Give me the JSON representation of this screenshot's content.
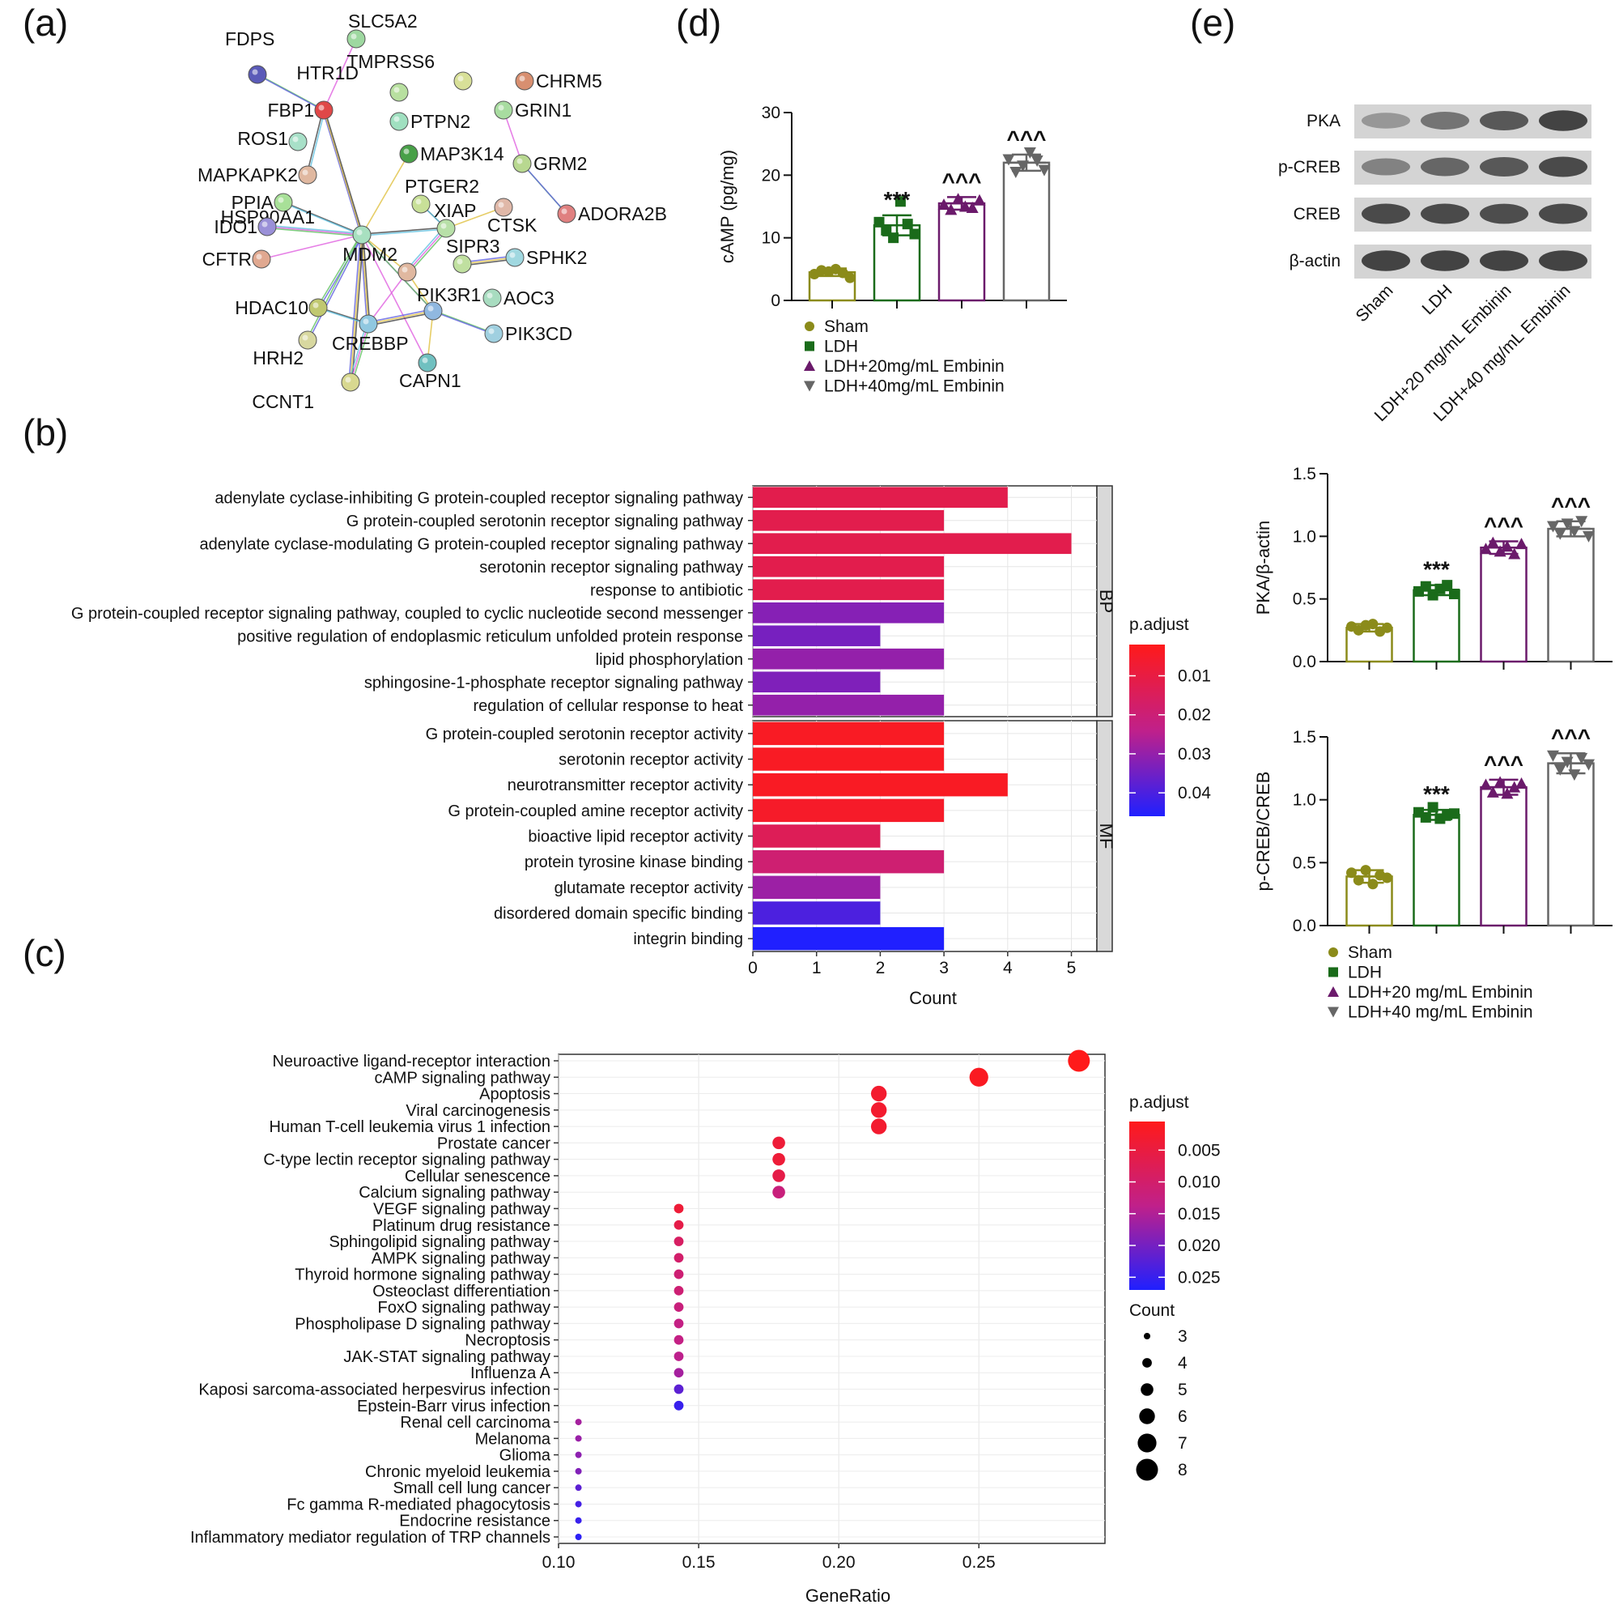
{
  "panels": {
    "a": "(a)",
    "b": "(b)",
    "c": "(c)",
    "d": "(d)",
    "e": "(e)"
  },
  "network": {
    "nodes": [
      {
        "id": "SLC5A2",
        "color": "#9ed8a0"
      },
      {
        "id": "FDPS",
        "color": "#5a5ab8"
      },
      {
        "id": "FBP1",
        "color": "#e04848"
      },
      {
        "id": "HTR1D",
        "color": "#b8e0a0"
      },
      {
        "id": "TMPRSS6",
        "color": "#d8e098"
      },
      {
        "id": "CHRM5",
        "color": "#d88f70"
      },
      {
        "id": "ROS1",
        "color": "#a8e0c8"
      },
      {
        "id": "PTPN2",
        "color": "#a0e0c0"
      },
      {
        "id": "GRIN1",
        "color": "#a8dca0"
      },
      {
        "id": "MAP3K14",
        "color": "#48a048"
      },
      {
        "id": "MAPKAPK2",
        "color": "#e0b8a0"
      },
      {
        "id": "GRM2",
        "color": "#b8d890"
      },
      {
        "id": "PTGER2",
        "color": "#c8e098"
      },
      {
        "id": "PPIA",
        "color": "#a8e098"
      },
      {
        "id": "HSP90AA1",
        "color": "#a8e0c0"
      },
      {
        "id": "XIAP",
        "color": "#b8e0a8"
      },
      {
        "id": "CTSK",
        "color": "#e0b8a8"
      },
      {
        "id": "ADORA2B",
        "color": "#e08080"
      },
      {
        "id": "IDO1",
        "color": "#9a90d8"
      },
      {
        "id": "CFTR",
        "color": "#e0a890"
      },
      {
        "id": "MDM2",
        "color": "#e0b8a0"
      },
      {
        "id": "SIPR3",
        "color": "#c0e0a0"
      },
      {
        "id": "SPHK2",
        "color": "#a0d8e0"
      },
      {
        "id": "PIK3R1",
        "color": "#90b8e0"
      },
      {
        "id": "AOC3",
        "color": "#a8dcc0"
      },
      {
        "id": "HDAC10",
        "color": "#c0c870"
      },
      {
        "id": "PIK3CD",
        "color": "#a0d0e0"
      },
      {
        "id": "CREBBP",
        "color": "#90c8e0"
      },
      {
        "id": "HRH2",
        "color": "#d8d8a0"
      },
      {
        "id": "CAPN1",
        "color": "#70c0c0"
      },
      {
        "id": "CCNT1",
        "color": "#d8d890"
      }
    ],
    "edges": [
      [
        "SLC5A2",
        "FBP1"
      ],
      [
        "FDPS",
        "FBP1"
      ],
      [
        "FBP1",
        "HSP90AA1"
      ],
      [
        "HSP90AA1",
        "MAP3K14"
      ],
      [
        "HSP90AA1",
        "PPIA"
      ],
      [
        "HSP90AA1",
        "IDO1"
      ],
      [
        "HSP90AA1",
        "CFTR"
      ],
      [
        "HSP90AA1",
        "HDAC10"
      ],
      [
        "HSP90AA1",
        "CREBBP"
      ],
      [
        "HSP90AA1",
        "MDM2"
      ],
      [
        "HSP90AA1",
        "XIAP"
      ],
      [
        "HSP90AA1",
        "PIK3R1"
      ],
      [
        "HSP90AA1",
        "CAPN1"
      ],
      [
        "HSP90AA1",
        "HRH2"
      ],
      [
        "HSP90AA1",
        "CCNT1"
      ],
      [
        "XIAP",
        "CTSK"
      ],
      [
        "XIAP",
        "PTGER2"
      ],
      [
        "XIAP",
        "MDM2"
      ],
      [
        "MDM2",
        "CREBBP"
      ],
      [
        "PIK3R1",
        "PIK3CD"
      ],
      [
        "PIK3R1",
        "CREBBP"
      ],
      [
        "PIK3R1",
        "CAPN1"
      ],
      [
        "CREBBP",
        "HDAC10"
      ],
      [
        "CREBBP",
        "CCNT1"
      ],
      [
        "GRIN1",
        "GRM2"
      ],
      [
        "GRM2",
        "ADORA2B"
      ],
      [
        "SIPR3",
        "SPHK2"
      ],
      [
        "MDM2",
        "PIK3R1"
      ],
      [
        "FBP1",
        "MAPKAPK2"
      ]
    ]
  },
  "chart_data": [
    {
      "panel": "d",
      "type": "bar",
      "categories": [
        "Sham",
        "LDH",
        "LDH+20mg/mL Embinin",
        "LDH+40mg/mL Embinin"
      ],
      "values": [
        4.5,
        12.0,
        15.5,
        22.0
      ],
      "errors": [
        0.6,
        1.6,
        1.0,
        1.3
      ],
      "points": [
        [
          4.2,
          4.8,
          4.6,
          5.0,
          4.4,
          3.6
        ],
        [
          12.5,
          11.2,
          10.0,
          15.8,
          12.2,
          10.6
        ],
        [
          15.3,
          14.5,
          16.2,
          15.0,
          14.8,
          16.0
        ],
        [
          22.5,
          20.5,
          21.5,
          23.6,
          22.3,
          20.8
        ]
      ],
      "colors": [
        "#8b8b1a",
        "#1a6b1a",
        "#6b1a6b",
        "#666666"
      ],
      "markers": [
        "circle",
        "square",
        "triangle-up",
        "triangle-down"
      ],
      "annotations": [
        "",
        "***",
        "^^^",
        "^^^"
      ],
      "ylabel": "cAMP (pg/mg)",
      "ylim": [
        0,
        30
      ],
      "yticks": [
        0,
        10,
        20,
        30
      ],
      "legend": [
        "Sham",
        "LDH",
        "LDH+20mg/mL Embinin",
        "LDH+40mg/mL Embinin"
      ]
    },
    {
      "panel": "e-PKA",
      "type": "bar",
      "categories": [
        "Sham",
        "LDH",
        "LDH+20 mg/mL Embinin",
        "LDH+40 mg/mL Embinin"
      ],
      "values": [
        0.27,
        0.57,
        0.91,
        1.06
      ],
      "errors": [
        0.03,
        0.04,
        0.05,
        0.06
      ],
      "points": [
        [
          0.28,
          0.25,
          0.29,
          0.3,
          0.24,
          0.27
        ],
        [
          0.56,
          0.6,
          0.53,
          0.58,
          0.61,
          0.54
        ],
        [
          0.9,
          0.95,
          0.88,
          0.92,
          0.86,
          0.94
        ],
        [
          1.08,
          1.02,
          1.1,
          1.04,
          1.12,
          1.0
        ]
      ],
      "colors": [
        "#8b8b1a",
        "#1a6b1a",
        "#6b1a6b",
        "#666666"
      ],
      "markers": [
        "circle",
        "square",
        "triangle-up",
        "triangle-down"
      ],
      "annotations": [
        "",
        "***",
        "^^^",
        "^^^"
      ],
      "ylabel": "PKA/β-actin",
      "ylim": [
        0,
        1.5
      ],
      "yticks": [
        "0.0",
        "0.5",
        "1.0",
        "1.5"
      ]
    },
    {
      "panel": "e-CREB",
      "type": "bar",
      "categories": [
        "Sham",
        "LDH",
        "LDH+20 mg/mL Embinin",
        "LDH+40 mg/mL Embinin"
      ],
      "values": [
        0.39,
        0.88,
        1.1,
        1.29
      ],
      "errors": [
        0.05,
        0.04,
        0.06,
        0.08
      ],
      "points": [
        [
          0.42,
          0.36,
          0.44,
          0.33,
          0.4,
          0.38
        ],
        [
          0.9,
          0.86,
          0.94,
          0.85,
          0.88,
          0.89
        ],
        [
          1.12,
          1.06,
          1.14,
          1.05,
          1.1,
          1.13
        ],
        [
          1.35,
          1.24,
          1.3,
          1.2,
          1.33,
          1.28
        ]
      ],
      "colors": [
        "#8b8b1a",
        "#1a6b1a",
        "#6b1a6b",
        "#666666"
      ],
      "markers": [
        "circle",
        "square",
        "triangle-up",
        "triangle-down"
      ],
      "annotations": [
        "",
        "***",
        "^^^",
        "^^^"
      ],
      "ylabel": "p-CREB/CREB",
      "ylim": [
        0,
        1.5
      ],
      "yticks": [
        "0.0",
        "0.5",
        "1.0",
        "1.5"
      ],
      "legend": [
        "Sham",
        "LDH",
        "LDH+20 mg/mL Embinin",
        "LDH+40 mg/mL Embinin"
      ]
    },
    {
      "panel": "b",
      "type": "bar",
      "orientation": "horizontal",
      "facets": [
        {
          "name": "BP",
          "categories": [
            "adenylate cyclase-inhibiting G protein-coupled receptor signaling pathway",
            "G protein-coupled serotonin receptor signaling pathway",
            "adenylate cyclase-modulating G protein-coupled receptor signaling pathway",
            "serotonin receptor signaling pathway",
            "response to antibiotic",
            "G protein-coupled receptor signaling pathway, coupled to cyclic nucleotide second messenger",
            "positive regulation of endoplasmic reticulum unfolded protein response",
            "lipid phosphorylation",
            "sphingosine-1-phosphate receptor signaling pathway",
            "regulation of cellular response to heat"
          ],
          "values": [
            4,
            3,
            5,
            3,
            3,
            3,
            2,
            3,
            2,
            3
          ],
          "padj": [
            0.012,
            0.012,
            0.012,
            0.012,
            0.012,
            0.032,
            0.034,
            0.03,
            0.033,
            0.03
          ]
        },
        {
          "name": "MF",
          "categories": [
            "G protein-coupled serotonin receptor activity",
            "serotonin receptor activity",
            "neurotransmitter receptor activity",
            "G protein-coupled amine receptor activity",
            "bioactive lipid receptor activity",
            "protein tyrosine kinase binding",
            "glutamate receptor activity",
            "disordered domain specific binding",
            "integrin binding"
          ],
          "values": [
            3,
            3,
            4,
            3,
            2,
            3,
            2,
            2,
            3
          ],
          "padj": [
            0.004,
            0.004,
            0.004,
            0.005,
            0.014,
            0.019,
            0.029,
            0.04,
            0.046
          ]
        }
      ],
      "xlabel": "Count",
      "xlim": [
        0,
        5.4
      ],
      "xticks": [
        0,
        1,
        2,
        3,
        4,
        5
      ],
      "colorbar": {
        "title": "p.adjust",
        "ticks": [
          "0.01",
          "0.02",
          "0.03",
          "0.04"
        ],
        "range": [
          0.002,
          0.046
        ],
        "low": "#ff1a1a",
        "mid": "#c0208a",
        "high": "#2020ff"
      }
    },
    {
      "panel": "c",
      "type": "scatter",
      "categories": [
        "Neuroactive ligand-receptor interaction",
        "cAMP signaling pathway",
        "Apoptosis",
        "Viral carcinogenesis",
        "Human T-cell leukemia virus 1 infection",
        "Prostate cancer",
        "C-type lectin receptor signaling pathway",
        "Cellular senescence",
        "Calcium signaling pathway",
        "VEGF signaling pathway",
        "Platinum drug resistance",
        "Sphingolipid signaling pathway",
        "AMPK signaling pathway",
        "Thyroid hormone signaling pathway",
        "Osteoclast differentiation",
        "FoxO signaling pathway",
        "Phospholipase D signaling pathway",
        "Necroptosis",
        "JAK-STAT signaling pathway",
        "Influenza A",
        "Kaposi sarcoma-associated herpesvirus infection",
        "Epstein-Barr virus infection",
        "Renal cell carcinoma",
        "Melanoma",
        "Glioma",
        "Chronic myeloid leukemia",
        "Small cell lung cancer",
        "Fc gamma R-mediated phagocytosis",
        "Endocrine resistance",
        "Inflammatory mediator regulation of TRP channels"
      ],
      "x": [
        0.2857,
        0.25,
        0.2143,
        0.2143,
        0.2143,
        0.1786,
        0.1786,
        0.1786,
        0.1786,
        0.1429,
        0.1429,
        0.1429,
        0.1429,
        0.1429,
        0.1429,
        0.1429,
        0.1429,
        0.1429,
        0.1429,
        0.1429,
        0.1429,
        0.1429,
        0.1071,
        0.1071,
        0.1071,
        0.1071,
        0.1071,
        0.1071,
        0.1071,
        0.1071
      ],
      "count": [
        8,
        7,
        6,
        6,
        6,
        5,
        5,
        5,
        5,
        4,
        4,
        4,
        4,
        4,
        4,
        4,
        4,
        4,
        4,
        4,
        4,
        4,
        3,
        3,
        3,
        3,
        3,
        3,
        3,
        3
      ],
      "padj": [
        0.0005,
        0.0015,
        0.003,
        0.003,
        0.003,
        0.004,
        0.004,
        0.006,
        0.012,
        0.004,
        0.006,
        0.009,
        0.01,
        0.011,
        0.011,
        0.012,
        0.013,
        0.013,
        0.014,
        0.016,
        0.022,
        0.025,
        0.016,
        0.017,
        0.018,
        0.019,
        0.022,
        0.024,
        0.025,
        0.026
      ],
      "xlabel": "GeneRatio",
      "xlim": [
        0.1,
        0.295
      ],
      "xticks": [
        "0.10",
        "0.15",
        "0.20",
        "0.25"
      ],
      "colorbar": {
        "title": "p.adjust",
        "ticks": [
          "0.005",
          "0.010",
          "0.015",
          "0.020",
          "0.025"
        ],
        "range": [
          0.0005,
          0.027
        ],
        "low": "#ff1a1a",
        "mid": "#c0208a",
        "high": "#2020ff"
      },
      "size_legend": {
        "title": "Count",
        "values": [
          3,
          4,
          5,
          6,
          7,
          8
        ]
      }
    }
  ],
  "western": {
    "bands": [
      "PKA",
      "p-CREB",
      "CREB",
      "β-actin"
    ],
    "lanes": [
      "Sham",
      "LDH",
      "LDH+20 mg/mL Embinin",
      "LDH+40 mg/mL Embinin"
    ],
    "intensity": [
      [
        0.35,
        0.6,
        0.8,
        0.95
      ],
      [
        0.5,
        0.7,
        0.8,
        0.9
      ],
      [
        0.9,
        0.9,
        0.88,
        0.9
      ],
      [
        0.95,
        0.95,
        0.95,
        0.95
      ]
    ]
  }
}
